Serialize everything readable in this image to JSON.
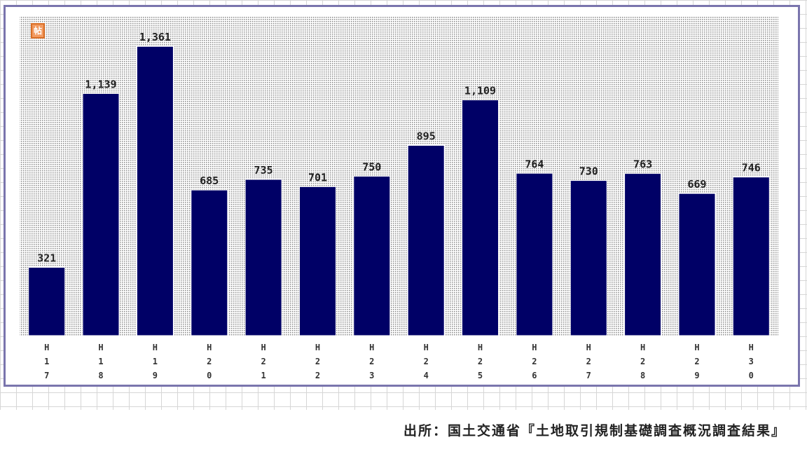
{
  "chart_data": {
    "type": "bar",
    "categories": [
      "H17",
      "H18",
      "H19",
      "H20",
      "H21",
      "H22",
      "H23",
      "H24",
      "H25",
      "H26",
      "H27",
      "H28",
      "H29",
      "H30"
    ],
    "values": [
      321,
      1139,
      1361,
      685,
      735,
      701,
      750,
      895,
      1109,
      764,
      730,
      763,
      669,
      746
    ],
    "value_labels": [
      "321",
      "1,139",
      "1,361",
      "685",
      "735",
      "701",
      "750",
      "895",
      "1,109",
      "764",
      "730",
      "763",
      "669",
      "746"
    ],
    "ylim": [
      0,
      1500
    ],
    "bar_color": "#000066",
    "plot_background": "dotted gray",
    "grid": false,
    "legend": "none"
  },
  "badge": {
    "text": "帖"
  },
  "source_note": "出所：国土交通省『土地取引規制基礎調査概況調査結果』"
}
